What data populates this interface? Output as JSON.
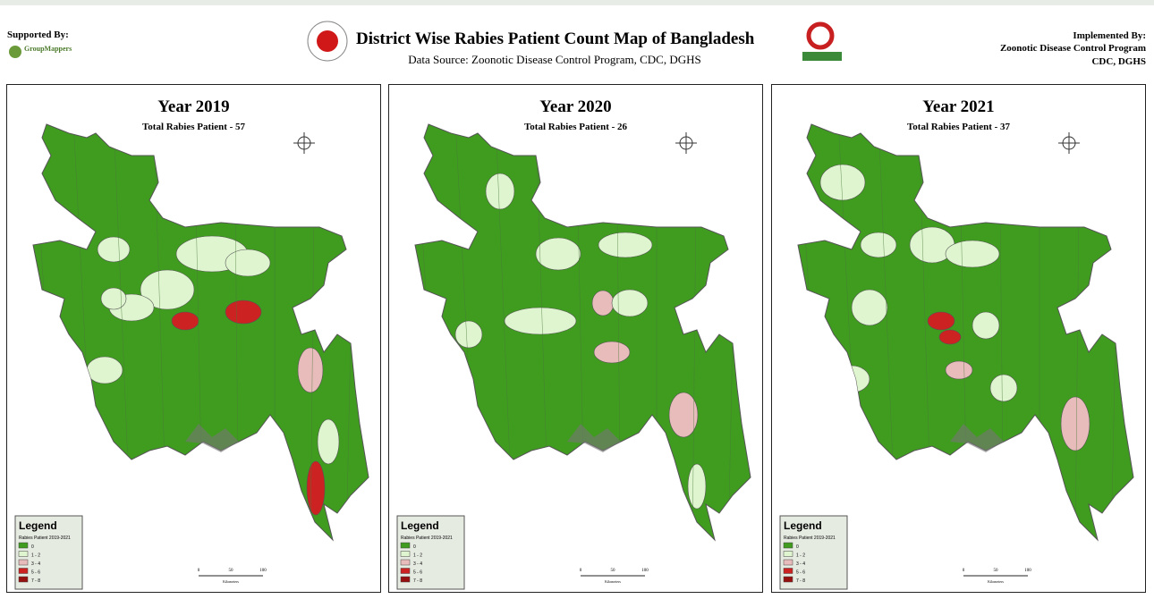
{
  "header": {
    "supported_by": "Supported By:",
    "sponsor": "GroupMappers",
    "title": "District Wise Rabies Patient Count Map of Bangladesh",
    "source": "Data Source: Zoonotic Disease Control Program, CDC, DGHS",
    "implemented_by": "Implemented By:",
    "implementer": "Zoonotic Disease Control Program",
    "implementer_org": "CDC, DGHS"
  },
  "panels": [
    {
      "title": "Year 2019",
      "subtitle": "Total Rabies Patient - 57"
    },
    {
      "title": "Year 2020",
      "subtitle": "Total Rabies Patient - 26"
    },
    {
      "title": "Year 2021",
      "subtitle": "Total Rabies Patient - 37"
    }
  ],
  "legend": {
    "title": "Legend",
    "subtitle": "Rabies Patient 2019-2021",
    "classes": [
      {
        "label": "0",
        "color": "#3f9c1f"
      },
      {
        "label": "1 - 2",
        "color": "#dff5cf"
      },
      {
        "label": "3 - 4",
        "color": "#e9bcbc"
      },
      {
        "label": "5 - 6",
        "color": "#cc2222"
      },
      {
        "label": "7 - 8",
        "color": "#961010"
      }
    ]
  },
  "scale": {
    "ticks": [
      "0",
      "50",
      "100"
    ],
    "unit": "Kilometers"
  }
}
